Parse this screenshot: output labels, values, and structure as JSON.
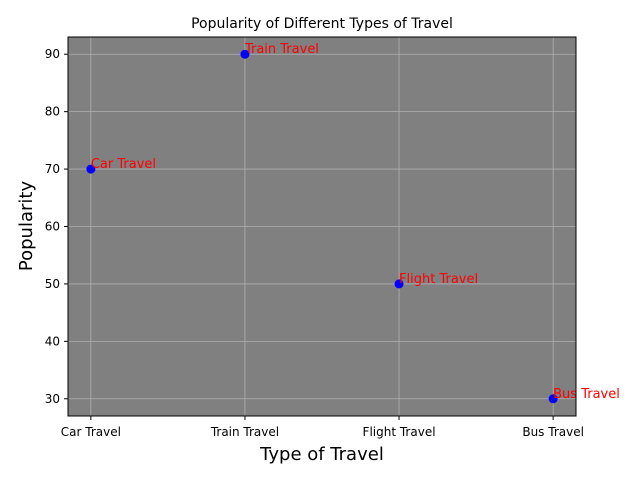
{
  "chart_data": {
    "type": "scatter",
    "title": "Popularity of Different Types of Travel",
    "xlabel": "Type of Travel",
    "ylabel": "Popularity",
    "categories": [
      "Car Travel",
      "Train Travel",
      "Flight Travel",
      "Bus Travel"
    ],
    "values": [
      70,
      90,
      50,
      30
    ],
    "annotations": [
      "Car Travel",
      "Train Travel",
      "Flight Travel",
      "Bus Travel"
    ],
    "ylim": [
      27,
      93
    ],
    "yticks": [
      30,
      40,
      50,
      60,
      70,
      80,
      90
    ],
    "grid": true,
    "colors": {
      "plot_background": "#808080",
      "marker": "#0000ff",
      "annotation": "#ff0000",
      "grid": "#b0b0b0"
    }
  }
}
